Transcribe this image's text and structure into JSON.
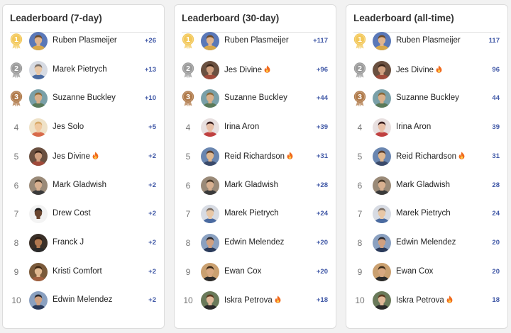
{
  "boards": [
    {
      "id": "7day",
      "title": "Leaderboard (7-day)",
      "entries": [
        {
          "rank": "1",
          "name": "Ruben Plasmeijer",
          "score": "+26",
          "fire": false,
          "avatar": "avatar-ruben"
        },
        {
          "rank": "2",
          "name": "Marek Pietrych",
          "score": "+13",
          "fire": false,
          "avatar": "avatar-marek"
        },
        {
          "rank": "3",
          "name": "Suzanne Buckley",
          "score": "+10",
          "fire": false,
          "avatar": "avatar-suzanne"
        },
        {
          "rank": "4",
          "name": "Jes Solo",
          "score": "+5",
          "fire": false,
          "avatar": "avatar-jessolo"
        },
        {
          "rank": "5",
          "name": "Jes Divine",
          "score": "+2",
          "fire": true,
          "avatar": "avatar-jesdivine"
        },
        {
          "rank": "6",
          "name": "Mark Gladwish",
          "score": "+2",
          "fire": false,
          "avatar": "avatar-mark"
        },
        {
          "rank": "7",
          "name": "Drew Cost",
          "score": "+2",
          "fire": false,
          "avatar": "avatar-drew"
        },
        {
          "rank": "8",
          "name": "Franck J",
          "score": "+2",
          "fire": false,
          "avatar": "avatar-franck"
        },
        {
          "rank": "9",
          "name": "Kristi Comfort",
          "score": "+2",
          "fire": false,
          "avatar": "avatar-kristi"
        },
        {
          "rank": "10",
          "name": "Edwin Melendez",
          "score": "+2",
          "fire": false,
          "avatar": "avatar-edwin"
        }
      ]
    },
    {
      "id": "30day",
      "title": "Leaderboard (30-day)",
      "entries": [
        {
          "rank": "1",
          "name": "Ruben Plasmeijer",
          "score": "+117",
          "fire": false,
          "avatar": "avatar-ruben"
        },
        {
          "rank": "2",
          "name": "Jes Divine",
          "score": "+96",
          "fire": true,
          "avatar": "avatar-jesdivine"
        },
        {
          "rank": "3",
          "name": "Suzanne Buckley",
          "score": "+44",
          "fire": false,
          "avatar": "avatar-suzanne"
        },
        {
          "rank": "4",
          "name": "Irina Aron",
          "score": "+39",
          "fire": false,
          "avatar": "avatar-irina"
        },
        {
          "rank": "5",
          "name": "Reid Richardson",
          "score": "+31",
          "fire": true,
          "avatar": "avatar-reid"
        },
        {
          "rank": "6",
          "name": "Mark Gladwish",
          "score": "+28",
          "fire": false,
          "avatar": "avatar-mark"
        },
        {
          "rank": "7",
          "name": "Marek Pietrych",
          "score": "+24",
          "fire": false,
          "avatar": "avatar-marek"
        },
        {
          "rank": "8",
          "name": "Edwin Melendez",
          "score": "+20",
          "fire": false,
          "avatar": "avatar-edwin"
        },
        {
          "rank": "9",
          "name": "Ewan Cox",
          "score": "+20",
          "fire": false,
          "avatar": "avatar-ewan"
        },
        {
          "rank": "10",
          "name": "Iskra Petrova",
          "score": "+18",
          "fire": true,
          "avatar": "avatar-iskra"
        }
      ]
    },
    {
      "id": "alltime",
      "title": "Leaderboard (all-time)",
      "entries": [
        {
          "rank": "1",
          "name": "Ruben Plasmeijer",
          "score": "117",
          "fire": false,
          "avatar": "avatar-ruben"
        },
        {
          "rank": "2",
          "name": "Jes Divine",
          "score": "96",
          "fire": true,
          "avatar": "avatar-jesdivine"
        },
        {
          "rank": "3",
          "name": "Suzanne Buckley",
          "score": "44",
          "fire": false,
          "avatar": "avatar-suzanne"
        },
        {
          "rank": "4",
          "name": "Irina Aron",
          "score": "39",
          "fire": false,
          "avatar": "avatar-irina"
        },
        {
          "rank": "5",
          "name": "Reid Richardson",
          "score": "31",
          "fire": true,
          "avatar": "avatar-reid"
        },
        {
          "rank": "6",
          "name": "Mark Gladwish",
          "score": "28",
          "fire": false,
          "avatar": "avatar-mark"
        },
        {
          "rank": "7",
          "name": "Marek Pietrych",
          "score": "24",
          "fire": false,
          "avatar": "avatar-marek"
        },
        {
          "rank": "8",
          "name": "Edwin Melendez",
          "score": "20",
          "fire": false,
          "avatar": "avatar-edwin"
        },
        {
          "rank": "9",
          "name": "Ewan Cox",
          "score": "20",
          "fire": false,
          "avatar": "avatar-ewan"
        },
        {
          "rank": "10",
          "name": "Iskra Petrova",
          "score": "18",
          "fire": true,
          "avatar": "avatar-iskra"
        }
      ]
    }
  ],
  "medals": {
    "gold": "#f3c85a",
    "silver": "#9a9a9a",
    "bronze": "#b07a4a"
  },
  "colors": {
    "score": "#3f57a6",
    "fire": "#f06a1d"
  },
  "icons": {
    "medal": "medal-icon",
    "fire": "fire-icon"
  }
}
